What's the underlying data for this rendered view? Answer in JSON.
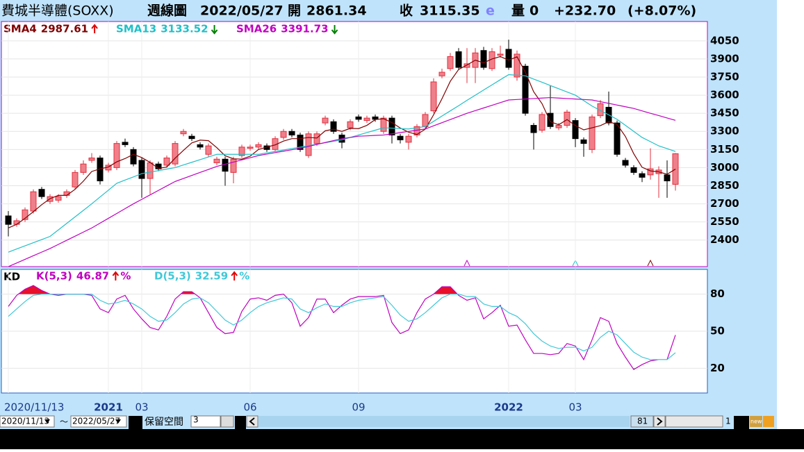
{
  "header": {
    "title": "費城半導體(SOXX)",
    "period": "週線圖",
    "date": "2022/05/27",
    "open_label": "開",
    "open": "2861.34",
    "close_label": "收",
    "close": "3115.35",
    "flag": "e",
    "volume_label": "量",
    "volume": "0",
    "change": "+232.70",
    "change_pct": "(+8.07%)"
  },
  "chart_data": [
    {
      "type": "candlestick",
      "categories": [
        "2020/11/13",
        null,
        null,
        null,
        null,
        null,
        null,
        null,
        null,
        null,
        null,
        null,
        "2021",
        null,
        null,
        null,
        "03",
        null,
        null,
        null,
        null,
        null,
        null,
        null,
        null,
        null,
        null,
        null,
        null,
        "06",
        null,
        null,
        null,
        null,
        null,
        null,
        null,
        null,
        null,
        null,
        null,
        null,
        "09",
        null,
        null,
        null,
        null,
        null,
        null,
        null,
        null,
        null,
        null,
        null,
        null,
        null,
        null,
        null,
        null,
        null,
        "2022",
        null,
        null,
        null,
        null,
        null,
        null,
        null,
        "03",
        null,
        null,
        null,
        null,
        null,
        null,
        null,
        null,
        null,
        null,
        null,
        null
      ],
      "open": [
        2600,
        2530,
        2570,
        2640,
        2820,
        2720,
        2730,
        2770,
        2840,
        2960,
        3060,
        3080,
        2980,
        3000,
        3210,
        3150,
        3060,
        2910,
        3030,
        3020,
        3030,
        3280,
        3260,
        3190,
        3110,
        3040,
        3070,
        2960,
        3100,
        3160,
        3170,
        3180,
        3150,
        3250,
        3300,
        3270,
        3100,
        3200,
        3370,
        3380,
        3270,
        3330,
        3420,
        3390,
        3420,
        3300,
        3410,
        3260,
        3210,
        3270,
        3340,
        3470,
        3760,
        3820,
        3960,
        3830,
        3830,
        3970,
        3820,
        3930,
        3980,
        3750,
        3840,
        3350,
        3310,
        3450,
        3330,
        3350,
        3390,
        3230,
        3150,
        3430,
        3500,
        3370,
        3060,
        3000,
        2950,
        2940,
        2950,
        2940,
        2861.34
      ],
      "high": [
        2640,
        2580,
        2670,
        2820,
        2840,
        2780,
        2780,
        2820,
        2980,
        3060,
        3120,
        3100,
        3040,
        3220,
        3240,
        3170,
        3080,
        3060,
        3050,
        3100,
        3220,
        3320,
        3280,
        3210,
        3200,
        3090,
        3090,
        3090,
        3190,
        3190,
        3210,
        3200,
        3260,
        3320,
        3320,
        3290,
        3300,
        3300,
        3430,
        3400,
        3290,
        3400,
        3440,
        3430,
        3440,
        3430,
        3430,
        3280,
        3280,
        3360,
        3460,
        3740,
        3820,
        3950,
        3990,
        3990,
        3990,
        4000,
        3990,
        4010,
        4060,
        3970,
        3860,
        3370,
        3460,
        3680,
        3370,
        3480,
        3410,
        3250,
        3440,
        3560,
        3630,
        3390,
        3080,
        3020,
        2970,
        3160,
        3010,
        3060,
        3120
      ],
      "low": [
        2430,
        2510,
        2550,
        2620,
        2740,
        2700,
        2710,
        2750,
        2820,
        2940,
        3040,
        2860,
        2960,
        2980,
        3170,
        3010,
        2750,
        2780,
        2970,
        3000,
        3010,
        3260,
        3220,
        3150,
        3090,
        3020,
        2850,
        2870,
        3080,
        3140,
        3150,
        3130,
        3130,
        3230,
        3250,
        3130,
        3080,
        3180,
        3350,
        3280,
        3160,
        3310,
        3380,
        3370,
        3380,
        3280,
        3200,
        3200,
        3150,
        3250,
        3320,
        3450,
        3740,
        3800,
        3810,
        3700,
        3700,
        3810,
        3800,
        3910,
        3810,
        3720,
        3430,
        3150,
        3290,
        3320,
        3310,
        3330,
        3170,
        3090,
        3120,
        3410,
        3350,
        3090,
        3000,
        2940,
        2880,
        2900,
        2750,
        2750,
        2810
      ],
      "close": [
        2530,
        2560,
        2650,
        2800,
        2760,
        2760,
        2760,
        2800,
        2960,
        3030,
        3080,
        2890,
        3020,
        3200,
        3190,
        3030,
        2910,
        3040,
        2990,
        3080,
        3200,
        3300,
        3240,
        3170,
        3180,
        3070,
        2970,
        3070,
        3170,
        3170,
        3190,
        3150,
        3240,
        3300,
        3270,
        3150,
        3280,
        3280,
        3410,
        3300,
        3210,
        3380,
        3400,
        3410,
        3400,
        3410,
        3270,
        3230,
        3260,
        3340,
        3440,
        3710,
        3790,
        3920,
        3830,
        3860,
        3950,
        3830,
        3960,
        3940,
        3830,
        3940,
        3450,
        3290,
        3440,
        3340,
        3350,
        3460,
        3240,
        3200,
        3420,
        3530,
        3370,
        3110,
        3020,
        2960,
        2920,
        2990,
        2980,
        2890,
        3115.35
      ],
      "up_color": "#f07f8a",
      "up_edge": "#e0303f",
      "down_color": "#000000",
      "series": [
        {
          "name": "SMA4",
          "color": "#800000",
          "values": [
            2500,
            2530,
            2580,
            2635,
            2693,
            2743,
            2770,
            2770,
            2820,
            2888,
            2968,
            2990,
            3005,
            3048,
            3075,
            3110,
            3083,
            3043,
            2993,
            3005,
            3078,
            3143,
            3205,
            3228,
            3223,
            3165,
            3098,
            3073,
            3070,
            3095,
            3150,
            3170,
            3188,
            3220,
            3240,
            3240,
            3250,
            3245,
            3305,
            3318,
            3300,
            3325,
            3323,
            3350,
            3398,
            3405,
            3373,
            3328,
            3293,
            3275,
            3318,
            3438,
            3570,
            3715,
            3813,
            3850,
            3890,
            3868,
            3900,
            3920,
            3890,
            3918,
            3790,
            3628,
            3530,
            3380,
            3355,
            3398,
            3348,
            3313,
            3330,
            3348,
            3380,
            3358,
            3258,
            3115,
            3003,
            2973,
            2965,
            2945,
            2987.61
          ]
        },
        {
          "name": "SMA13",
          "color": "#20c0c8",
          "values": [
            2300,
            2326,
            2352,
            2378,
            2404,
            2430,
            2484,
            2538,
            2592,
            2646,
            2700,
            2757,
            2813,
            2870,
            2897,
            2923,
            2950,
            2963,
            2975,
            2988,
            3000,
            3022,
            3044,
            3066,
            3088,
            3110,
            3110,
            3110,
            3110,
            3110,
            3110,
            3122,
            3134,
            3146,
            3158,
            3170,
            3182,
            3194,
            3206,
            3218,
            3230,
            3250,
            3270,
            3290,
            3310,
            3330,
            3327,
            3323,
            3320,
            3330,
            3340,
            3383,
            3427,
            3470,
            3513,
            3557,
            3600,
            3643,
            3685,
            3728,
            3770,
            3765,
            3760,
            3733,
            3707,
            3680,
            3653,
            3627,
            3600,
            3555,
            3510,
            3473,
            3437,
            3400,
            3350,
            3300,
            3250,
            3215,
            3180,
            3157,
            3133.52
          ]
        },
        {
          "name": "SMA26",
          "color": "#c000c0",
          "values": [
            2180,
            2210,
            2240,
            2270,
            2300,
            2330,
            2364,
            2398,
            2432,
            2466,
            2500,
            2540,
            2580,
            2620,
            2660,
            2700,
            2737,
            2774,
            2811,
            2848,
            2885,
            2910,
            2935,
            2960,
            2985,
            3010,
            3028,
            3046,
            3064,
            3082,
            3100,
            3112,
            3124,
            3136,
            3148,
            3160,
            3176,
            3192,
            3208,
            3224,
            3240,
            3250,
            3260,
            3263,
            3267,
            3270,
            3280,
            3290,
            3300,
            3310,
            3320,
            3346,
            3372,
            3398,
            3424,
            3450,
            3472,
            3494,
            3516,
            3538,
            3560,
            3564,
            3568,
            3572,
            3576,
            3580,
            3576,
            3572,
            3568,
            3564,
            3560,
            3546,
            3532,
            3518,
            3504,
            3490,
            3470,
            3450,
            3431,
            3411,
            3391.73
          ]
        }
      ],
      "ylim": [
        2180,
        4210
      ],
      "yticks": [
        2400,
        2550,
        2700,
        2850,
        3000,
        3150,
        3300,
        3450,
        3600,
        3750,
        3900,
        4050
      ],
      "grid": true
    },
    {
      "type": "line",
      "title": "KD",
      "unit": "%",
      "ylim": [
        0,
        100
      ],
      "yticks": [
        20,
        50,
        80
      ],
      "grid": true,
      "series": [
        {
          "name": "K(5,3)",
          "color": "#c000c0",
          "values": [
            70,
            79,
            84,
            87,
            83,
            80,
            79,
            80,
            80,
            80,
            79,
            68,
            65,
            76,
            79,
            68,
            60,
            53,
            51,
            62,
            76,
            82,
            82,
            77,
            65,
            53,
            48,
            49,
            66,
            76,
            77,
            75,
            79,
            80,
            73,
            54,
            61,
            76,
            76,
            65,
            71,
            76,
            78,
            78,
            78,
            79,
            57,
            48,
            51,
            65,
            76,
            80,
            86,
            86,
            79,
            75,
            77,
            60,
            65,
            71,
            54,
            55,
            43,
            32,
            32,
            31,
            32,
            40,
            38,
            27,
            43,
            61,
            58,
            40,
            29,
            19,
            23,
            26,
            27,
            27,
            46.87
          ]
        },
        {
          "name": "D(5,3)",
          "color": "#40c8d8",
          "values": [
            62,
            68,
            74,
            79,
            80,
            80,
            80,
            80,
            80,
            80,
            80,
            75,
            72,
            73,
            75,
            72,
            68,
            62,
            58,
            59,
            65,
            72,
            76,
            77,
            73,
            66,
            59,
            55,
            59,
            65,
            70,
            73,
            75,
            77,
            76,
            68,
            65,
            69,
            72,
            70,
            70,
            73,
            75,
            76,
            77,
            78,
            71,
            63,
            58,
            60,
            65,
            71,
            77,
            80,
            80,
            78,
            78,
            72,
            70,
            70,
            65,
            62,
            56,
            48,
            42,
            38,
            36,
            37,
            37,
            34,
            37,
            45,
            50,
            47,
            40,
            33,
            29,
            27,
            27,
            27,
            32.59
          ]
        }
      ]
    }
  ],
  "toolbar": {
    "start": "2020/11/13",
    "tilde": "～",
    "end": "2022/05/27",
    "reserve_label": "保留空間",
    "reserve_value": "3",
    "count": "81",
    "page": "1",
    "new": "new"
  }
}
